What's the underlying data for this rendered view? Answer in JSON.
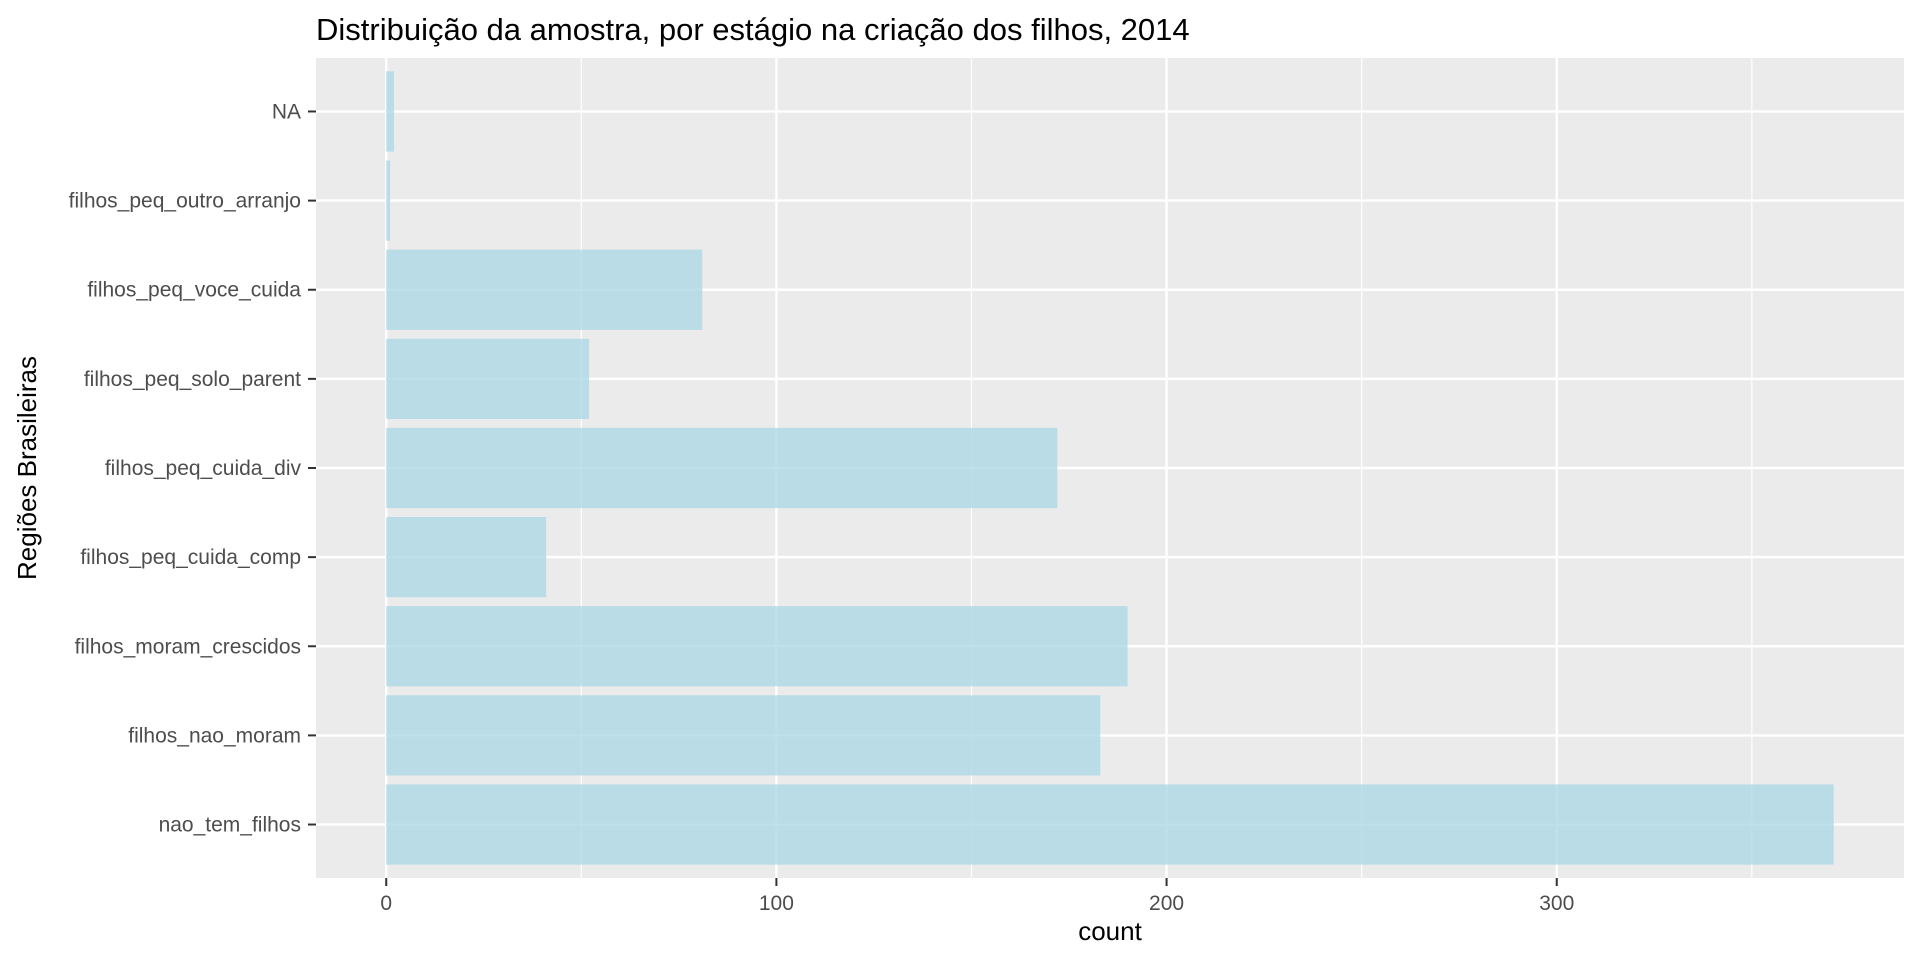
{
  "chart_data": {
    "type": "bar",
    "orientation": "horizontal",
    "title": "Distribuição da amostra, por estágio na criação dos filhos, 2014",
    "xlabel": "count",
    "ylabel": "Regiões Brasileiras",
    "categories": [
      "nao_tem_filhos",
      "filhos_nao_moram",
      "filhos_moram_crescidos",
      "filhos_peq_cuida_comp",
      "filhos_peq_cuida_div",
      "filhos_peq_solo_parent",
      "filhos_peq_voce_cuida",
      "filhos_peq_outro_arranjo",
      "NA"
    ],
    "values": [
      371,
      183,
      190,
      41,
      172,
      52,
      81,
      1,
      2
    ],
    "xlim": [
      -18,
      389
    ],
    "xticks": [
      0,
      100,
      200,
      300
    ],
    "grid": true,
    "legend": "none",
    "colors": {
      "bar": "#add8e6",
      "panel": "#ebebeb",
      "grid": "#ffffff",
      "text": "#000000",
      "tick_text": "#4d4d4d"
    }
  }
}
